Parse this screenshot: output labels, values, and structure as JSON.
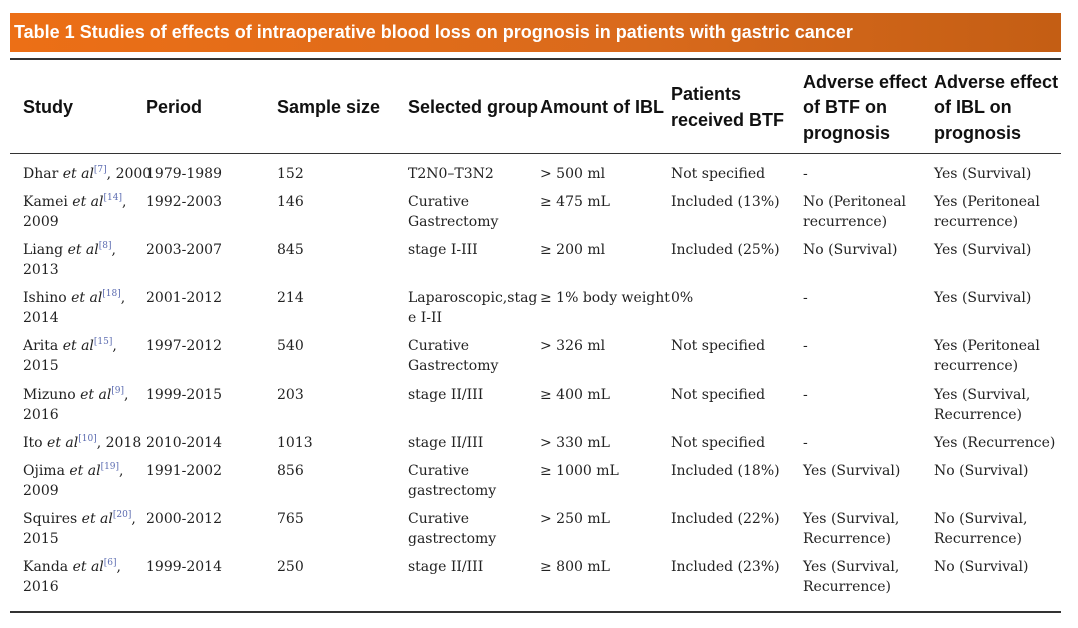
{
  "title": "Table 1  Studies of effects of intraoperative blood loss on prognosis in patients with gastric cancer",
  "headers": {
    "study": "Study",
    "period": "Period",
    "sample": "Sample size",
    "group": "Selected group",
    "amount": "Amount of IBL",
    "btf_1": "Patients",
    "btf_2": "received BTF",
    "adv_btf_1": "Adverse effect",
    "adv_btf_2": "of BTF on",
    "adv_btf_3": "prognosis",
    "adv_ibl_1": "Adverse effect",
    "adv_ibl_2": "of IBL on",
    "adv_ibl_3": "prognosis"
  },
  "rows": [
    {
      "author": "Dhar ",
      "etal": "et al",
      "ref": "[7]",
      "year1": ", 2000",
      "year2": "",
      "period": "1979-1989",
      "sample": "152",
      "group1": "T2N0–T3N2",
      "group2": "",
      "amount": "> 500 ml",
      "btf": "Not specified",
      "adv_btf1": "-",
      "adv_btf2": "",
      "adv_ibl1": "Yes (Survival)",
      "adv_ibl2": ""
    },
    {
      "author": "Kamei ",
      "etal": "et al",
      "ref": "[14]",
      "year1": ",",
      "year2": "2009",
      "period": "1992-2003",
      "sample": "146",
      "group1": "Curative",
      "group2": "Gastrectomy",
      "amount": "≥ 475 mL",
      "btf": "Included (13%)",
      "adv_btf1": "No (Peritoneal",
      "adv_btf2": "recurrence)",
      "adv_ibl1": "Yes (Peritoneal",
      "adv_ibl2": "recurrence)"
    },
    {
      "author": "Liang ",
      "etal": "et al",
      "ref": "[8]",
      "year1": ",",
      "year2": "2013",
      "period": "2003-2007",
      "sample": "845",
      "group1": "stage I-III",
      "group2": "",
      "amount": "≥ 200 ml",
      "btf": "Included (25%)",
      "adv_btf1": "No (Survival)",
      "adv_btf2": "",
      "adv_ibl1": "Yes (Survival)",
      "adv_ibl2": ""
    },
    {
      "author": "Ishino ",
      "etal": "et al",
      "ref": "[18]",
      "year1": ",",
      "year2": "2014",
      "period": "2001-2012",
      "sample": "214",
      "group1": "Laparoscopic,stag",
      "group2": "e I-II",
      "amount": "≥ 1% body weight",
      "btf": "0%",
      "adv_btf1": "-",
      "adv_btf2": "",
      "adv_ibl1": "Yes (Survival)",
      "adv_ibl2": ""
    },
    {
      "author": "Arita ",
      "etal": "et al",
      "ref": "[15]",
      "year1": ",",
      "year2": "2015",
      "period": "1997-2012",
      "sample": "540",
      "group1": "Curative",
      "group2": "Gastrectomy",
      "amount": "> 326 ml",
      "btf": "Not specified",
      "adv_btf1": "-",
      "adv_btf2": "",
      "adv_ibl1": "Yes (Peritoneal",
      "adv_ibl2": "recurrence)"
    },
    {
      "author": "Mizuno ",
      "etal": "et al",
      "ref": "[9]",
      "year1": ",",
      "year2": "2016",
      "period": "1999-2015",
      "sample": "203",
      "group1": "stage II/III",
      "group2": "",
      "amount": "≥ 400 mL",
      "btf": "Not specified",
      "adv_btf1": "-",
      "adv_btf2": "",
      "adv_ibl1": "Yes (Survival,",
      "adv_ibl2": "Recurrence)"
    },
    {
      "author": "Ito ",
      "etal": "et al",
      "ref": "[10]",
      "year1": ", 2018",
      "year2": "",
      "period": "2010-2014",
      "sample": "1013",
      "group1": "stage II/III",
      "group2": "",
      "amount": "> 330 mL",
      "btf": "Not specified",
      "adv_btf1": "-",
      "adv_btf2": "",
      "adv_ibl1": "Yes (Recurrence)",
      "adv_ibl2": ""
    },
    {
      "author": "Ojima ",
      "etal": "et al",
      "ref": "[19]",
      "year1": ",",
      "year2": "2009",
      "period": "1991-2002",
      "sample": "856",
      "group1": "Curative",
      "group2": "gastrectomy",
      "amount": "≥ 1000 mL",
      "btf": "Included (18%)",
      "adv_btf1": "Yes (Survival)",
      "adv_btf2": "",
      "adv_ibl1": "No (Survival)",
      "adv_ibl2": ""
    },
    {
      "author": "Squires ",
      "etal": "et al",
      "ref": "[20]",
      "year1": ",",
      "year2": "2015",
      "period": "2000-2012",
      "sample": "765",
      "group1": "Curative",
      "group2": "gastrectomy",
      "amount": "> 250 mL",
      "btf": "Included (22%)",
      "adv_btf1": "Yes (Survival,",
      "adv_btf2": "Recurrence)",
      "adv_ibl1": "No (Survival,",
      "adv_ibl2": "Recurrence)"
    },
    {
      "author": "Kanda ",
      "etal": "et al",
      "ref": "[6]",
      "year1": ",",
      "year2": "2016",
      "period": "1999-2014",
      "sample": "250",
      "group1": "stage II/III",
      "group2": "",
      "amount": "≥ 800 mL",
      "btf": "Included (23%)",
      "adv_btf1": "Yes (Survival,",
      "adv_btf2": "Recurrence)",
      "adv_ibl1": "No (Survival)",
      "adv_ibl2": ""
    }
  ]
}
